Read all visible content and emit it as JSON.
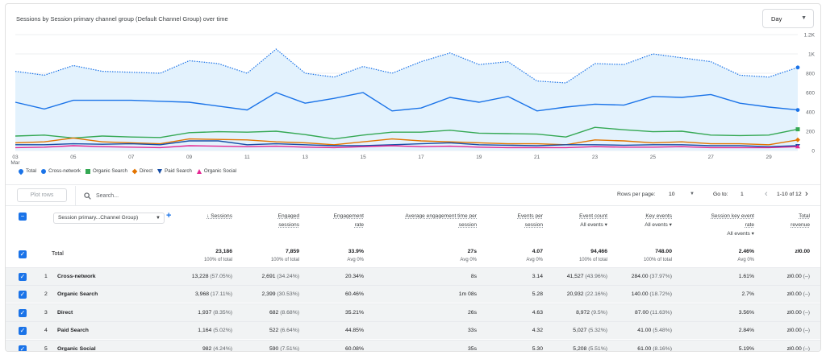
{
  "chart": {
    "title": "Sessions by Session primary channel group (Default Channel Group) over time",
    "granularity": "Day",
    "y_ticks": [
      "1.2K",
      "1K",
      "800",
      "600",
      "400",
      "200",
      "0"
    ],
    "x_ticks": [
      "03",
      "05",
      "07",
      "09",
      "11",
      "13",
      "15",
      "17",
      "19",
      "21",
      "23",
      "25",
      "27",
      "29"
    ],
    "x_month": "Mar",
    "legend": [
      {
        "name": "Total",
        "color": "#1a73e8",
        "shape": "pin"
      },
      {
        "name": "Cross-network",
        "color": "#1a73e8",
        "shape": "circle"
      },
      {
        "name": "Organic Search",
        "color": "#34a853",
        "shape": "square"
      },
      {
        "name": "Direct",
        "color": "#e37400",
        "shape": "diamond"
      },
      {
        "name": "Paid Search",
        "color": "#174ea6",
        "shape": "triangle"
      },
      {
        "name": "Organic Social",
        "color": "#e52592",
        "shape": "triangle-up"
      }
    ]
  },
  "chart_data": {
    "type": "line",
    "x": [
      "Mar 03",
      "Mar 04",
      "Mar 05",
      "Mar 06",
      "Mar 07",
      "Mar 08",
      "Mar 09",
      "Mar 10",
      "Mar 11",
      "Mar 12",
      "Mar 13",
      "Mar 14",
      "Mar 15",
      "Mar 16",
      "Mar 17",
      "Mar 18",
      "Mar 19",
      "Mar 20",
      "Mar 21",
      "Mar 22",
      "Mar 23",
      "Mar 24",
      "Mar 25",
      "Mar 26",
      "Mar 27",
      "Mar 28",
      "Mar 29",
      "Mar 30"
    ],
    "ylim": [
      0,
      1200
    ],
    "y_ticks": [
      "1.2K",
      "1K",
      "800",
      "600",
      "400",
      "200",
      "0"
    ],
    "series": [
      {
        "name": "Total",
        "values": [
          820,
          780,
          880,
          820,
          810,
          800,
          930,
          900,
          800,
          1050,
          800,
          760,
          870,
          800,
          920,
          1010,
          890,
          920,
          720,
          700,
          900,
          890,
          1000,
          960,
          920,
          780,
          760,
          860
        ]
      },
      {
        "name": "Cross-network",
        "values": [
          500,
          430,
          520,
          520,
          520,
          510,
          500,
          460,
          420,
          600,
          490,
          540,
          600,
          410,
          440,
          550,
          500,
          560,
          410,
          450,
          480,
          470,
          560,
          550,
          580,
          490,
          450,
          420
        ]
      },
      {
        "name": "Organic Search",
        "values": [
          150,
          160,
          130,
          150,
          140,
          135,
          185,
          195,
          190,
          200,
          165,
          120,
          160,
          190,
          190,
          210,
          180,
          175,
          170,
          140,
          240,
          215,
          195,
          200,
          160,
          155,
          160,
          220
        ]
      },
      {
        "name": "Direct",
        "values": [
          80,
          90,
          130,
          90,
          80,
          70,
          120,
          115,
          110,
          90,
          80,
          60,
          90,
          120,
          100,
          90,
          80,
          70,
          70,
          60,
          110,
          100,
          80,
          90,
          70,
          70,
          60,
          110
        ]
      },
      {
        "name": "Paid Search",
        "values": [
          60,
          60,
          70,
          65,
          70,
          60,
          100,
          100,
          60,
          70,
          60,
          50,
          50,
          60,
          70,
          80,
          60,
          55,
          50,
          60,
          60,
          55,
          60,
          60,
          50,
          50,
          40,
          50
        ]
      },
      {
        "name": "Organic Social",
        "values": [
          30,
          35,
          50,
          40,
          35,
          30,
          50,
          45,
          40,
          45,
          35,
          30,
          40,
          50,
          40,
          45,
          35,
          30,
          30,
          30,
          40,
          35,
          35,
          40,
          30,
          30,
          30,
          40
        ]
      }
    ]
  },
  "toolbar": {
    "plot_rows": "Plot rows",
    "search_placeholder": "Search...",
    "rows_per_page_label": "Rows per page:",
    "rows_per_page": "10",
    "goto_label": "Go to:",
    "goto_value": "1",
    "page_info": "1-10 of 12"
  },
  "table": {
    "dimension": "Session primary...Channel Group)",
    "columns": [
      {
        "l1": "↓ Sessions",
        "l2": ""
      },
      {
        "l1": "Engaged",
        "l2": "sessions"
      },
      {
        "l1": "Engagement",
        "l2": "rate"
      },
      {
        "l1": "Average engagement time per",
        "l2": "session"
      },
      {
        "l1": "Events per",
        "l2": "session"
      },
      {
        "l1": "Event count",
        "l2": "All events ▾"
      },
      {
        "l1": "Key events",
        "l2": "All events ▾"
      },
      {
        "l1": "Session key event",
        "l2": "rate",
        "l3": "All events ▾"
      },
      {
        "l1": "Total",
        "l2": "revenue"
      }
    ],
    "total": {
      "label": "Total",
      "values": [
        "23,186",
        "7,859",
        "33.9%",
        "27s",
        "4.07",
        "94,466",
        "748.00",
        "2.46%",
        "zł0.00"
      ],
      "subs": [
        "100% of total",
        "100% of total",
        "Avg 0%",
        "Avg 0%",
        "Avg 0%",
        "100% of total",
        "100% of total",
        "Avg 0%",
        ""
      ]
    },
    "rows": [
      {
        "idx": "1",
        "name": "Cross-network",
        "values": [
          "13,228",
          "2,691",
          "20.34%",
          "8s",
          "3.14",
          "41,527",
          "284.00",
          "1.61%",
          "zł0.00"
        ],
        "pct": [
          "(57.05%)",
          "(34.24%)",
          "",
          "",
          "",
          "(43.96%)",
          "(37.97%)",
          "",
          "(–)"
        ]
      },
      {
        "idx": "2",
        "name": "Organic Search",
        "values": [
          "3,968",
          "2,399",
          "60.46%",
          "1m 08s",
          "5.28",
          "20,932",
          "140.00",
          "2.7%",
          "zł0.00"
        ],
        "pct": [
          "(17.11%)",
          "(30.53%)",
          "",
          "",
          "",
          "(22.16%)",
          "(18.72%)",
          "",
          "(–)"
        ]
      },
      {
        "idx": "3",
        "name": "Direct",
        "values": [
          "1,937",
          "682",
          "35.21%",
          "26s",
          "4.63",
          "8,972",
          "87.00",
          "3.56%",
          "zł0.00"
        ],
        "pct": [
          "(8.35%)",
          "(8.68%)",
          "",
          "",
          "",
          "(9.5%)",
          "(11.63%)",
          "",
          "(–)"
        ]
      },
      {
        "idx": "4",
        "name": "Paid Search",
        "values": [
          "1,164",
          "522",
          "44.85%",
          "33s",
          "4.32",
          "5,027",
          "41.00",
          "2.84%",
          "zł0.00"
        ],
        "pct": [
          "(5.02%)",
          "(6.64%)",
          "",
          "",
          "",
          "(5.32%)",
          "(5.48%)",
          "",
          "(–)"
        ]
      },
      {
        "idx": "5",
        "name": "Organic Social",
        "values": [
          "982",
          "590",
          "60.08%",
          "35s",
          "5.30",
          "5,208",
          "61.00",
          "5.19%",
          "zł0.00"
        ],
        "pct": [
          "(4.24%)",
          "(7.51%)",
          "",
          "",
          "",
          "(5.51%)",
          "(8.16%)",
          "",
          "(–)"
        ]
      }
    ]
  }
}
